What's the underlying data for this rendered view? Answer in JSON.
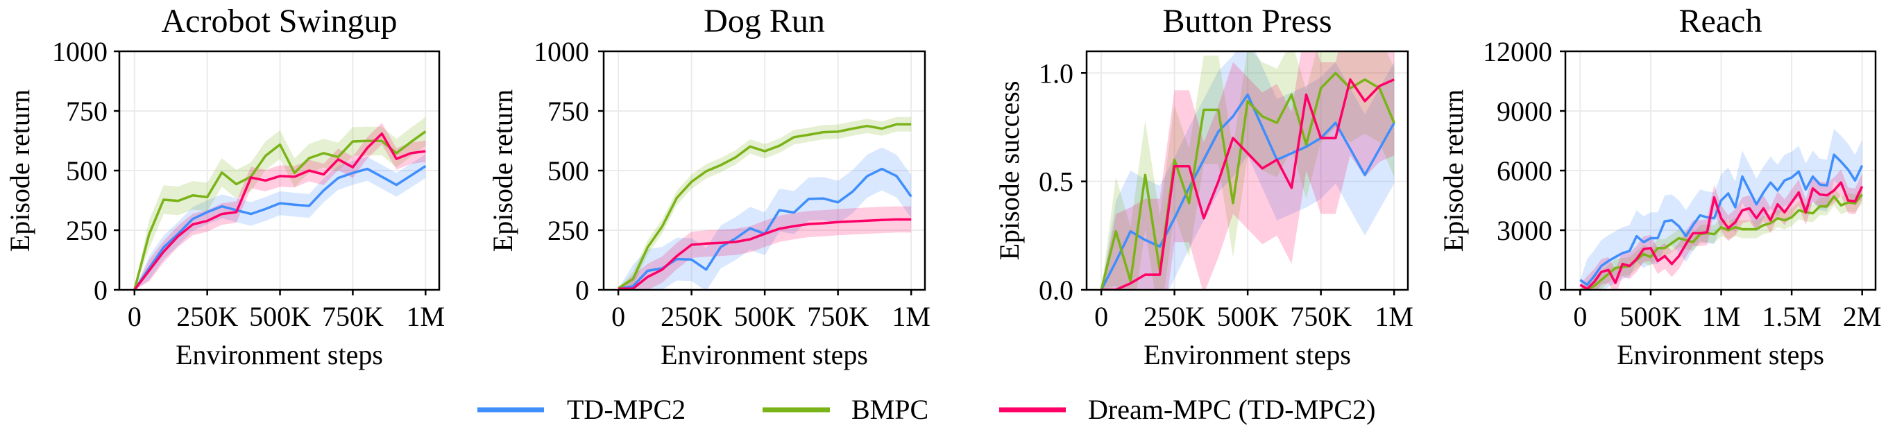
{
  "legend": {
    "placement": "bottom-center",
    "entries": [
      {
        "name": "TD-MPC2",
        "color": "#3f8efc"
      },
      {
        "name": "BMPC",
        "color": "#7ab317"
      },
      {
        "name": "Dream-MPC (TD-MPC2)",
        "color": "#ff0066"
      }
    ]
  },
  "chart_data": [
    {
      "type": "line",
      "title": "Acrobot Swingup",
      "xlabel": "Environment steps",
      "ylabel": "Episode return",
      "xlim": [
        -52000,
        1047000
      ],
      "ylim": [
        0,
        1000
      ],
      "grid": true,
      "xticks": [
        0,
        250000,
        500000,
        750000,
        1000000
      ],
      "xtick_labels": [
        "0",
        "250K",
        "500K",
        "750K",
        "1M"
      ],
      "yticks": [
        0,
        250,
        500,
        750,
        1000
      ],
      "ytick_labels": [
        "0",
        "250",
        "500",
        "750",
        "1000"
      ],
      "x_step": 50000,
      "series": [
        {
          "name": "TD-MPC2",
          "color": "#3f8efc",
          "band": 50,
          "values": [
            0,
            90,
            178,
            235,
            297,
            326,
            350,
            334,
            318,
            339,
            363,
            357,
            352,
            417,
            469,
            490,
            507,
            474,
            440,
            479,
            519
          ]
        },
        {
          "name": "BMPC",
          "color": "#7ab317",
          "band": 60,
          "values": [
            0,
            232,
            378,
            373,
            396,
            389,
            492,
            443,
            474,
            562,
            609,
            490,
            552,
            573,
            557,
            622,
            624,
            624,
            573,
            620,
            664
          ]
        },
        {
          "name": "Dream-MPC (TD-MPC2)",
          "color": "#ff0066",
          "band": 45,
          "values": [
            0,
            80,
            160,
            225,
            274,
            289,
            318,
            326,
            471,
            458,
            477,
            474,
            500,
            484,
            547,
            514,
            595,
            655,
            549,
            573,
            581
          ]
        }
      ]
    },
    {
      "type": "line",
      "title": "Dog Run",
      "xlabel": "Environment steps",
      "ylabel": "Episode return",
      "xlim": [
        -50000,
        1047000
      ],
      "ylim": [
        0,
        1000
      ],
      "grid": true,
      "xticks": [
        0,
        250000,
        500000,
        750000,
        1000000
      ],
      "xtick_labels": [
        "0",
        "250K",
        "500K",
        "750K",
        "1M"
      ],
      "yticks": [
        0,
        250,
        500,
        750,
        1000
      ],
      "ytick_labels": [
        "0",
        "250",
        "500",
        "750",
        "1000"
      ],
      "x_step": 50000,
      "series": [
        {
          "name": "TD-MPC2",
          "color": "#3f8efc",
          "band": 90,
          "values": [
            5,
            15,
            80,
            90,
            129,
            127,
            85,
            180,
            215,
            258,
            235,
            334,
            324,
            381,
            383,
            367,
            412,
            477,
            507,
            477,
            391
          ]
        },
        {
          "name": "BMPC",
          "color": "#7ab317",
          "band": 30,
          "values": [
            7,
            45,
            178,
            266,
            386,
            453,
            497,
            523,
            555,
            601,
            581,
            604,
            640,
            650,
            661,
            663,
            676,
            687,
            676,
            694,
            694
          ]
        },
        {
          "name": "Dream-MPC (TD-MPC2)",
          "color": "#ff0066",
          "band": 55,
          "values": [
            5,
            5,
            54,
            85,
            142,
            189,
            194,
            197,
            201,
            212,
            235,
            256,
            267,
            276,
            279,
            284,
            287,
            290,
            293,
            295,
            295
          ]
        }
      ]
    },
    {
      "type": "line",
      "title": "Button Press",
      "xlabel": "Environment steps",
      "ylabel": "Episode success",
      "xlim": [
        -50000,
        1047000
      ],
      "ylim": [
        0,
        1.1
      ],
      "grid": true,
      "xticks": [
        0,
        250000,
        500000,
        750000,
        1000000
      ],
      "xtick_labels": [
        "0",
        "250K",
        "500K",
        "750K",
        "1M"
      ],
      "yticks": [
        0,
        0.5,
        1.0
      ],
      "ytick_labels": [
        "0.0",
        "0.5",
        "1.0"
      ],
      "x_step": 50000,
      "series": [
        {
          "name": "TD-MPC2",
          "color": "#3f8efc",
          "band": 0.28,
          "values": [
            0,
            0.13,
            0.27,
            0.23,
            0.2,
            0.33,
            0.47,
            0.6,
            0.73,
            0.8,
            0.9,
            0.75,
            0.6,
            0.63,
            0.66,
            0.7,
            0.77,
            0.65,
            0.53,
            0.65,
            0.77
          ]
        },
        {
          "name": "BMPC",
          "color": "#7ab317",
          "band": 0.25,
          "values": [
            0,
            0.27,
            0.04,
            0.53,
            0.09,
            0.6,
            0.4,
            0.83,
            0.83,
            0.4,
            0.87,
            0.8,
            0.77,
            0.9,
            0.67,
            0.93,
            1.0,
            0.93,
            0.97,
            0.93,
            0.77
          ]
        },
        {
          "name": "Dream-MPC (TD-MPC2)",
          "color": "#ff0066",
          "band": 0.35,
          "values": [
            0,
            0,
            0.03,
            0.07,
            0.07,
            0.57,
            0.57,
            0.33,
            0.5,
            0.7,
            0.63,
            0.56,
            0.6,
            0.47,
            0.9,
            0.7,
            0.7,
            0.97,
            0.87,
            0.94,
            0.97
          ]
        }
      ]
    },
    {
      "type": "line",
      "title": "Reach",
      "xlabel": "Environment steps",
      "ylabel": "Episode return",
      "xlim": [
        -105000,
        2095000
      ],
      "ylim": [
        0,
        12000
      ],
      "grid": true,
      "xticks": [
        0,
        500000,
        1000000,
        1500000,
        2000000
      ],
      "xtick_labels": [
        "0",
        "500K",
        "1M",
        "1.5M",
        "2M"
      ],
      "yticks": [
        0,
        3000,
        6000,
        9000,
        12000
      ],
      "ytick_labels": [
        "0",
        "3000",
        "6000",
        "9000",
        "12000"
      ],
      "x_step": 50000,
      "series": [
        {
          "name": "TD-MPC2",
          "color": "#3f8efc",
          "band": 1300,
          "values": [
            500,
            250,
            700,
            1200,
            1450,
            1650,
            1850,
            1950,
            2700,
            2400,
            2600,
            2600,
            3450,
            3500,
            3200,
            2700,
            3250,
            3750,
            3650,
            3600,
            4500,
            4850,
            4150,
            5700,
            5000,
            4300,
            4900,
            5400,
            5000,
            5500,
            5650,
            5950,
            5050,
            5700,
            5300,
            5250,
            6800,
            6450,
            6050,
            5500,
            6250
          ]
        },
        {
          "name": "BMPC",
          "color": "#7ab317",
          "band": 450,
          "values": [
            0,
            0,
            200,
            500,
            800,
            1100,
            1150,
            1200,
            1500,
            1800,
            1650,
            2100,
            2100,
            2350,
            2600,
            2500,
            2400,
            2800,
            2850,
            2800,
            3150,
            3000,
            3150,
            3050,
            3050,
            3050,
            3250,
            3350,
            3600,
            3500,
            3650,
            4000,
            3900,
            3850,
            4200,
            4200,
            4700,
            4250,
            4400,
            4350,
            4800
          ]
        },
        {
          "name": "Dream-MPC (TD-MPC2)",
          "color": "#ff0066",
          "band": 650,
          "values": [
            250,
            50,
            400,
            900,
            1000,
            350,
            1300,
            1200,
            1550,
            2050,
            2100,
            1450,
            1700,
            1300,
            1700,
            2300,
            2850,
            2850,
            2900,
            4650,
            3600,
            3100,
            3400,
            4000,
            4100,
            3600,
            4100,
            3500,
            4300,
            3900,
            4400,
            4900,
            3900,
            5100,
            4800,
            4750,
            5000,
            5400,
            4500,
            4450,
            5200
          ]
        }
      ]
    }
  ]
}
